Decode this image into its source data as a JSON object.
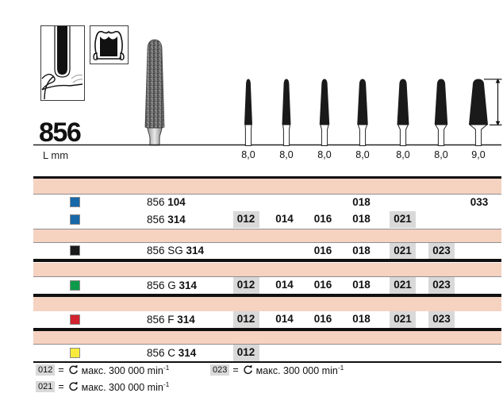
{
  "header": {
    "product_number": "856",
    "length_label": "L mm"
  },
  "pictograms": {
    "left": "bur-at-crown-margin-pictogram",
    "right": "molar-crown-preparation-pictogram"
  },
  "profile_row": {
    "lengths": [
      "8,0",
      "8,0",
      "8,0",
      "8,0",
      "8,0",
      "8,0",
      "9,0"
    ]
  },
  "table": {
    "iso_columns": [
      "012",
      "014",
      "016",
      "018",
      "021",
      "023",
      "033"
    ],
    "rows": [
      {
        "grit_color": "blue",
        "label": "856",
        "label_bold": "104",
        "cells": [
          {
            "value": "018",
            "col": "018",
            "highlighted": false
          },
          {
            "value": "033",
            "col": "033",
            "highlighted": false
          }
        ]
      },
      {
        "grit_color": "blue",
        "label": "856",
        "label_bold": "314",
        "cells": [
          {
            "value": "012",
            "col": "012",
            "highlighted": true
          },
          {
            "value": "014",
            "col": "014",
            "highlighted": false
          },
          {
            "value": "016",
            "col": "016",
            "highlighted": false
          },
          {
            "value": "018",
            "col": "018",
            "highlighted": false
          },
          {
            "value": "021",
            "col": "021",
            "highlighted": true
          }
        ]
      },
      {
        "grit_color": "black",
        "label": "856 SG",
        "label_bold": "314",
        "cells": [
          {
            "value": "016",
            "col": "016",
            "highlighted": false
          },
          {
            "value": "018",
            "col": "018",
            "highlighted": false
          },
          {
            "value": "021",
            "col": "021",
            "highlighted": true
          },
          {
            "value": "023",
            "col": "023",
            "highlighted": true
          }
        ]
      },
      {
        "grit_color": "green",
        "label": "856 G",
        "label_bold": "314",
        "cells": [
          {
            "value": "012",
            "col": "012",
            "highlighted": true
          },
          {
            "value": "014",
            "col": "014",
            "highlighted": false
          },
          {
            "value": "016",
            "col": "016",
            "highlighted": false
          },
          {
            "value": "018",
            "col": "018",
            "highlighted": false
          },
          {
            "value": "021",
            "col": "021",
            "highlighted": true
          },
          {
            "value": "023",
            "col": "023",
            "highlighted": true
          }
        ]
      },
      {
        "grit_color": "red",
        "label": "856 F",
        "label_bold": "314",
        "cells": [
          {
            "value": "012",
            "col": "012",
            "highlighted": true
          },
          {
            "value": "014",
            "col": "014",
            "highlighted": false
          },
          {
            "value": "016",
            "col": "016",
            "highlighted": false
          },
          {
            "value": "018",
            "col": "018",
            "highlighted": false
          },
          {
            "value": "021",
            "col": "021",
            "highlighted": true
          },
          {
            "value": "023",
            "col": "023",
            "highlighted": true
          }
        ]
      },
      {
        "grit_color": "yellow",
        "label": "856 C",
        "label_bold": "314",
        "cells": [
          {
            "value": "012",
            "col": "012",
            "highlighted": true
          }
        ]
      }
    ]
  },
  "footnotes": {
    "equals": "=",
    "items": [
      {
        "code": "012",
        "text": "макс. 300 000 min",
        "exponent": "-1"
      },
      {
        "code": "023",
        "text": "макс. 300 000 min",
        "exponent": "-1"
      },
      {
        "code": "021",
        "text": "макс. 300 000 min",
        "exponent": "-1"
      }
    ]
  },
  "colors": {
    "band_pink": "#f6d2c1",
    "cell_highlight": "#d9d9d9",
    "grit": {
      "blue": "#1768a8",
      "black": "#1a1a1a",
      "green": "#0c9c49",
      "red": "#d2232e",
      "yellow": "#f7ea3a"
    }
  }
}
